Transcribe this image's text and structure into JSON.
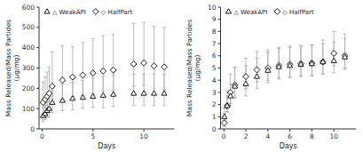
{
  "chart_data": [
    {
      "type": "scatter",
      "x_label": "Days",
      "y_label": "Mass Released/Mass Partides\n(μg/mg)",
      "x": [
        0.1,
        0.3,
        0.5,
        0.7,
        1.0,
        2.0,
        3.0,
        4.0,
        5.0,
        6.0,
        7.0,
        9.0,
        10.0,
        11.0,
        12.0
      ],
      "series": [
        {
          "name": "△ WeakAPI",
          "marker": "triangle",
          "color": "black",
          "values": [
            65,
            75,
            90,
            100,
            130,
            140,
            150,
            155,
            160,
            165,
            170,
            175,
            175,
            175,
            175
          ],
          "yerr_low": [
            30,
            30,
            35,
            40,
            50,
            50,
            55,
            55,
            55,
            60,
            60,
            60,
            60,
            60,
            60
          ],
          "yerr_high": [
            40,
            40,
            45,
            50,
            80,
            80,
            80,
            85,
            90,
            95,
            95,
            95,
            95,
            95,
            95
          ]
        },
        {
          "name": "◇ HalfPart",
          "marker": "diamond",
          "color": "black",
          "values": [
            130,
            145,
            160,
            175,
            210,
            240,
            255,
            265,
            275,
            285,
            290,
            320,
            325,
            310,
            305
          ],
          "yerr_low": [
            60,
            65,
            70,
            80,
            90,
            95,
            95,
            100,
            100,
            100,
            100,
            110,
            110,
            110,
            110
          ],
          "yerr_high": [
            100,
            110,
            120,
            130,
            170,
            170,
            150,
            160,
            170,
            175,
            175,
            200,
            200,
            195,
            195
          ]
        }
      ],
      "xlim": [
        -0.3,
        13
      ],
      "xticks": [
        0,
        5,
        10
      ],
      "ylim": [
        0,
        600
      ],
      "yticks": [
        0,
        100,
        200,
        300,
        400,
        500,
        600
      ],
      "grid": false,
      "legend": "upper left"
    },
    {
      "type": "scatter",
      "x_label": "Days",
      "y_label": "Mass Released/Mass Partides\n(μg/mg)",
      "x": [
        0.05,
        0.3,
        0.6,
        1.0,
        2.0,
        3.0,
        4.0,
        5.0,
        6.0,
        7.0,
        8.0,
        9.0,
        10.0,
        11.0
      ],
      "series": [
        {
          "name": "△ WeakAPI",
          "marker": "triangle",
          "color": "black",
          "values": [
            1.0,
            1.9,
            2.7,
            3.5,
            3.7,
            4.3,
            4.8,
            5.1,
            5.2,
            5.3,
            5.35,
            5.5,
            5.6,
            5.9
          ],
          "yerr_low": [
            0.3,
            0.5,
            0.8,
            1.0,
            1.0,
            1.0,
            1.0,
            1.0,
            1.0,
            1.0,
            1.0,
            1.0,
            1.0,
            1.0
          ],
          "yerr_high": [
            0.7,
            0.8,
            1.0,
            1.5,
            1.5,
            1.5,
            1.5,
            1.5,
            1.5,
            1.5,
            1.5,
            1.5,
            1.5,
            1.5
          ]
        },
        {
          "name": "◇ HalfPart",
          "marker": "diamond",
          "color": "black",
          "values": [
            0.5,
            1.9,
            3.0,
            3.6,
            4.3,
            4.85,
            5.0,
            5.2,
            5.3,
            5.35,
            5.4,
            5.5,
            6.2,
            6.0
          ],
          "yerr_low": [
            0.3,
            0.5,
            0.9,
            1.0,
            1.0,
            1.0,
            1.0,
            1.0,
            1.0,
            1.0,
            1.0,
            1.0,
            1.0,
            1.0
          ],
          "yerr_high": [
            0.8,
            1.2,
            1.5,
            1.5,
            1.5,
            1.5,
            1.5,
            1.5,
            1.5,
            1.5,
            1.5,
            1.8,
            1.8,
            1.8
          ]
        }
      ],
      "xlim": [
        -0.3,
        12
      ],
      "xticks": [
        0,
        2,
        4,
        6,
        8,
        10
      ],
      "ylim": [
        0,
        10
      ],
      "yticks": [
        0,
        1,
        2,
        3,
        4,
        5,
        6,
        7,
        8,
        9,
        10
      ],
      "grid": false,
      "legend": "upper left"
    }
  ]
}
